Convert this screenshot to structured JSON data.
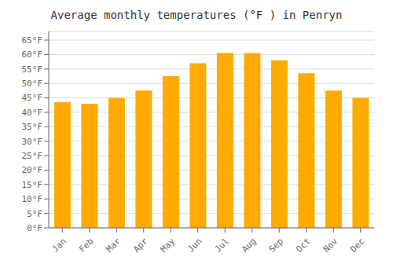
{
  "chart_data": {
    "type": "bar",
    "title": "Average monthly temperatures (°F ) in Penryn",
    "categories": [
      "Jan",
      "Feb",
      "Mar",
      "Apr",
      "May",
      "Jun",
      "Jul",
      "Aug",
      "Sep",
      "Oct",
      "Nov",
      "Dec"
    ],
    "values": [
      43.5,
      43.0,
      45.0,
      47.5,
      52.5,
      57.0,
      60.5,
      60.5,
      58.0,
      53.5,
      47.5,
      45.0
    ],
    "color": "#FFAA00",
    "ylim": [
      0,
      68
    ],
    "yticks": [
      {
        "value": 0,
        "label": "0°F"
      },
      {
        "value": 5,
        "label": "5°F"
      },
      {
        "value": 10,
        "label": "10°F"
      },
      {
        "value": 15,
        "label": "15°F"
      },
      {
        "value": 20,
        "label": "20°F"
      },
      {
        "value": 25,
        "label": "25°F"
      },
      {
        "value": 30,
        "label": "30°F"
      },
      {
        "value": 35,
        "label": "35°F"
      },
      {
        "value": 40,
        "label": "40°F"
      },
      {
        "value": 45,
        "label": "45°F"
      },
      {
        "value": 50,
        "label": "50°F"
      },
      {
        "value": 55,
        "label": "55°F"
      },
      {
        "value": 60,
        "label": "60°F"
      },
      {
        "value": 65,
        "label": "65°F"
      }
    ],
    "grid": true
  }
}
